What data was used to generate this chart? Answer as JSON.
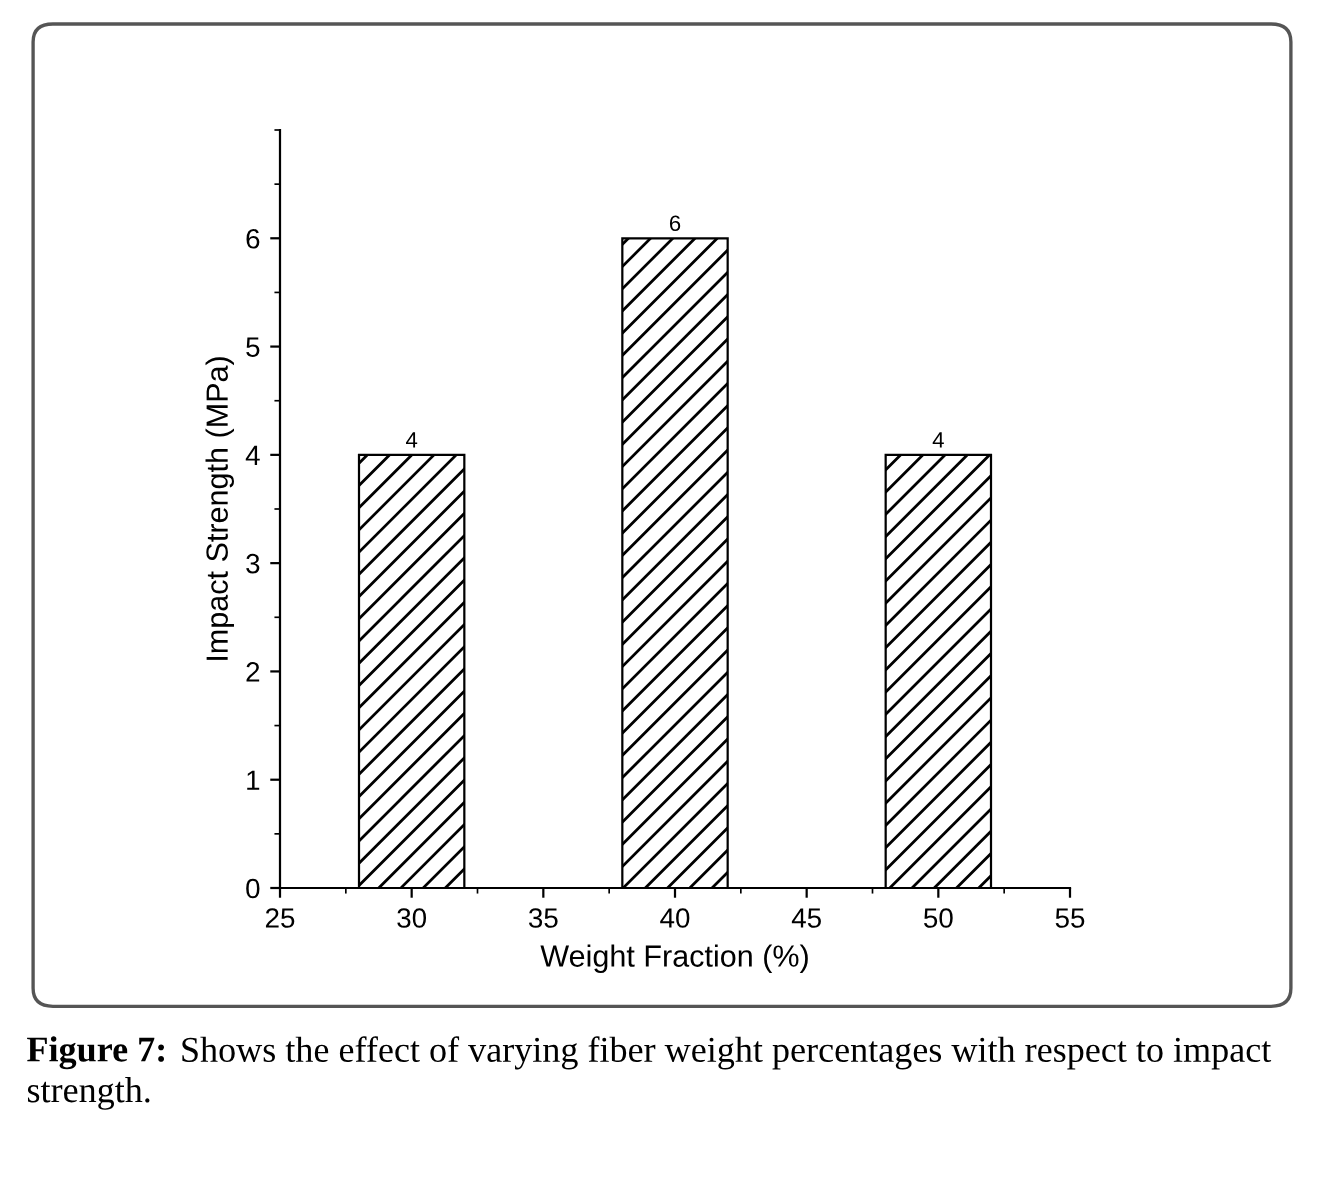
{
  "chart_data": {
    "type": "bar",
    "x": [
      30,
      40,
      50
    ],
    "values": [
      4,
      6,
      4
    ],
    "color": "#000000",
    "xlabel": "Weight Fraction (%)",
    "ylabel": "Impact Strength (MPa)",
    "xlim": [
      25,
      55
    ],
    "xticks": [
      25,
      30,
      35,
      40,
      45,
      50,
      55
    ],
    "ylim": [
      0,
      7
    ],
    "yticks": [
      0,
      1,
      2,
      3,
      4,
      5,
      6
    ],
    "data_labels": true,
    "grid": false,
    "legend": false,
    "annotations": [
      "Figure 7:",
      "Shows the effect of varying fiber weight percentages with respect to impact strength."
    ]
  }
}
